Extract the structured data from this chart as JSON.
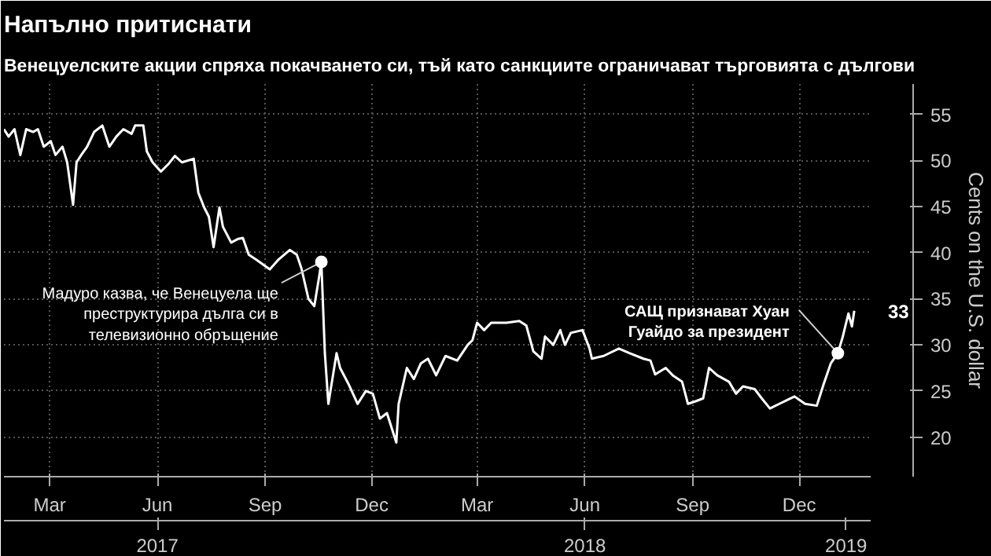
{
  "chart_data": {
    "type": "line",
    "title": "Напълно притиснати",
    "subtitle": "Венецуелските акции спряха покачването си, тъй като санкциите ограничават търговията с дългови",
    "ylabel": "Cents on the U.S. dollar",
    "x": [
      "2017-02-04",
      "2017-02-08",
      "2017-02-13",
      "2017-02-18",
      "2017-02-23",
      "2017-03-01",
      "2017-03-05",
      "2017-03-10",
      "2017-03-16",
      "2017-03-20",
      "2017-03-26",
      "2017-03-30",
      "2017-04-04",
      "2017-04-07",
      "2017-04-11",
      "2017-04-16",
      "2017-04-22",
      "2017-04-29",
      "2017-05-05",
      "2017-05-11",
      "2017-05-17",
      "2017-05-24",
      "2017-05-27",
      "2017-06-03",
      "2017-06-06",
      "2017-06-11",
      "2017-06-18",
      "2017-06-25",
      "2017-06-30",
      "2017-07-06",
      "2017-07-16",
      "2017-07-20",
      "2017-07-25",
      "2017-07-29",
      "2017-08-02",
      "2017-08-07",
      "2017-08-10",
      "2017-08-17",
      "2017-08-23",
      "2017-08-27",
      "2017-09-01",
      "2017-09-08",
      "2017-09-19",
      "2017-09-26",
      "2017-10-06",
      "2017-10-12",
      "2017-10-16",
      "2017-10-22",
      "2017-10-27",
      "2017-10-31",
      "2017-11-02",
      "2017-11-05",
      "2017-11-08",
      "2017-11-15",
      "2017-11-18",
      "2017-11-25",
      "2017-12-03",
      "2017-12-10",
      "2017-12-16",
      "2017-12-22",
      "2017-12-28",
      "2018-01-01",
      "2018-01-05",
      "2018-01-07",
      "2018-01-14",
      "2018-01-20",
      "2018-01-26",
      "2018-02-01",
      "2018-02-08",
      "2018-02-16",
      "2018-02-26",
      "2018-03-07",
      "2018-03-11",
      "2018-03-15",
      "2018-03-21",
      "2018-03-27",
      "2018-04-09",
      "2018-04-20",
      "2018-04-26",
      "2018-05-02",
      "2018-05-09",
      "2018-05-12",
      "2018-05-19",
      "2018-05-25",
      "2018-05-29",
      "2018-06-03",
      "2018-06-13",
      "2018-06-19",
      "2018-06-21",
      "2018-07-01",
      "2018-07-14",
      "2018-07-23",
      "2018-08-04",
      "2018-08-10",
      "2018-08-14",
      "2018-08-23",
      "2018-08-29",
      "2018-09-06",
      "2018-09-11",
      "2018-09-18",
      "2018-09-24",
      "2018-09-29",
      "2018-10-06",
      "2018-10-16",
      "2018-10-22",
      "2018-10-28",
      "2018-11-07",
      "2018-11-13",
      "2018-11-20",
      "2018-11-28",
      "2018-12-11",
      "2018-12-20",
      "2018-12-30",
      "2019-01-05",
      "2019-01-11",
      "2019-01-17",
      "2019-01-21",
      "2019-01-26",
      "2019-01-29",
      "2019-01-31"
    ],
    "series": [
      {
        "color": "#ffffff",
        "values": [
          53.4,
          52.6,
          53.4,
          50.6,
          53.4,
          53.1,
          53.4,
          51.5,
          52.1,
          50.6,
          51.5,
          49.8,
          45.2,
          49.8,
          50.6,
          51.5,
          53.1,
          53.8,
          51.5,
          52.6,
          53.4,
          52.9,
          53.8,
          53.8,
          51.0,
          49.8,
          48.8,
          49.7,
          50.5,
          49.8,
          50.2,
          46.5,
          44.9,
          43.9,
          40.6,
          44.9,
          42.8,
          41.1,
          41.5,
          41.6,
          39.8,
          39.2,
          38.2,
          39.2,
          40.3,
          39.8,
          38.3,
          35.0,
          34.2,
          37.3,
          39.0,
          29.1,
          23.6,
          29.1,
          27.5,
          25.8,
          23.6,
          25.0,
          24.7,
          22.0,
          22.6,
          21.0,
          19.4,
          23.6,
          27.5,
          26.3,
          28.0,
          28.5,
          26.7,
          28.8,
          28.3,
          30.0,
          30.5,
          32.4,
          31.6,
          32.4,
          32.4,
          32.6,
          32.1,
          29.3,
          28.5,
          30.9,
          30.0,
          31.6,
          30.0,
          31.3,
          31.6,
          29.6,
          28.5,
          28.8,
          29.6,
          29.1,
          28.5,
          28.3,
          26.8,
          27.5,
          26.7,
          26.0,
          23.6,
          23.9,
          24.2,
          27.5,
          26.7,
          26.0,
          24.7,
          25.5,
          25.2,
          24.2,
          23.1,
          23.6,
          24.4,
          23.6,
          23.4,
          25.8,
          28.0,
          29.1,
          30.8,
          33.4,
          32.0,
          33.7
        ]
      }
    ],
    "xlim": [
      "2017-02-04",
      "2019-02-14"
    ],
    "xticks": [
      {
        "value": "2017-03-15",
        "label": "Mar"
      },
      {
        "value": "2017-06-15",
        "label": "Jun"
      },
      {
        "value": "2017-09-15",
        "label": "Sep"
      },
      {
        "value": "2017-12-15",
        "label": "Dec"
      },
      {
        "value": "2018-03-15",
        "label": "Mar"
      },
      {
        "value": "2018-06-15",
        "label": "Jun"
      },
      {
        "value": "2018-09-15",
        "label": "Sep"
      },
      {
        "value": "2018-12-15",
        "label": "Dec"
      }
    ],
    "x2lim": [
      "2017-02-04",
      "2019-02-14"
    ],
    "x2ticks": [
      {
        "value": "2017-06-15",
        "label": "2017"
      },
      {
        "value": "2018-06-15",
        "label": "2018"
      },
      {
        "value": "2019-01-24",
        "label": "2019"
      }
    ],
    "ylim": [
      15.7,
      58.3
    ],
    "yticks": [
      20,
      25,
      30,
      35,
      40,
      45,
      50,
      55
    ],
    "grid": true,
    "annotations": [
      {
        "text": "Мадуро казва, че Венецуела ще\nпреструктурира дълга си в\nтелевизионно обръщение",
        "x": "2017-11-02",
        "y": 39.0
      },
      {
        "text": "САЩ признават Хуан\nГуайдо за президент",
        "x": "2019-01-17",
        "y": 29.1
      },
      {
        "text": "33",
        "x": "2019-01-31",
        "y": 33.7
      }
    ]
  }
}
